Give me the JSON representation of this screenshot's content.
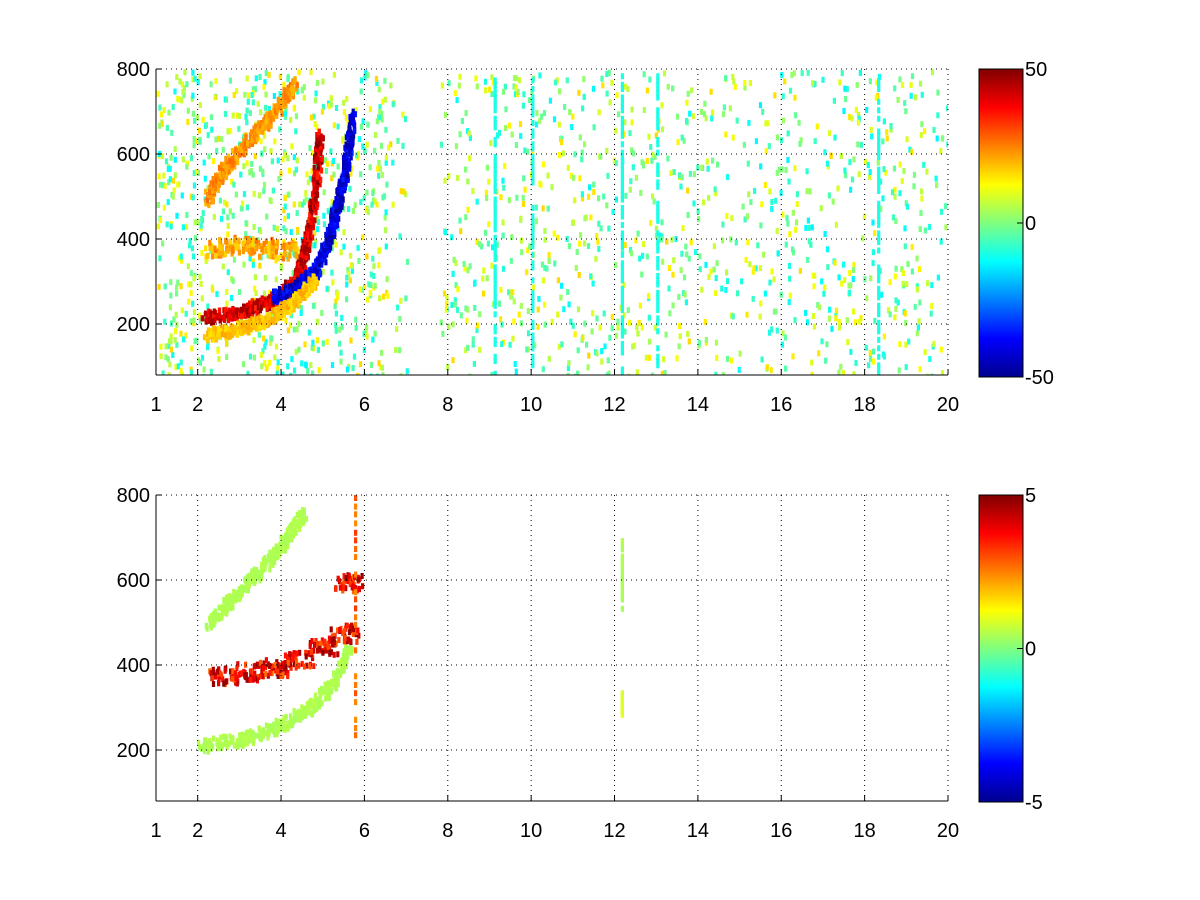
{
  "colormap": "jet",
  "colormap_stops": [
    "#00008f",
    "#0000ff",
    "#00ffff",
    "#ffff00",
    "#ff0000",
    "#800000"
  ],
  "chart_data": [
    {
      "type": "heatmap",
      "title": "",
      "xlabel": "",
      "ylabel": "",
      "xlim": [
        1,
        20
      ],
      "ylim": [
        80,
        800
      ],
      "xticks": [
        1,
        2,
        4,
        6,
        8,
        10,
        12,
        14,
        16,
        18,
        20
      ],
      "xtick_labels": [
        "1",
        "2",
        "4",
        "6",
        "8",
        "10",
        "12",
        "14",
        "16",
        "18",
        "20"
      ],
      "yticks": [
        200,
        400,
        600,
        800
      ],
      "ytick_labels": [
        "200",
        "400",
        "600",
        "800"
      ],
      "grid": true,
      "colorbar": {
        "min": -50,
        "max": 50,
        "ticks": [
          -50,
          0,
          50
        ],
        "tick_labels": [
          "-50",
          "0",
          "50"
        ]
      },
      "features": [
        {
          "kind": "arc",
          "desc": "positive ridge",
          "value": 45,
          "points": [
            [
              2.1,
              220
            ],
            [
              3.0,
              235
            ],
            [
              3.6,
              255
            ],
            [
              4.0,
              275
            ],
            [
              4.4,
              320
            ],
            [
              4.6,
              400
            ],
            [
              4.8,
              520
            ],
            [
              4.9,
              650
            ]
          ]
        },
        {
          "kind": "arc",
          "desc": "negative ridge",
          "value": -45,
          "points": [
            [
              3.8,
              270
            ],
            [
              4.3,
              285
            ],
            [
              4.8,
              330
            ],
            [
              5.1,
              400
            ],
            [
              5.3,
              480
            ],
            [
              5.5,
              560
            ],
            [
              5.7,
              700
            ]
          ]
        },
        {
          "kind": "arc",
          "desc": "outer positive band",
          "value": 20,
          "points": [
            [
              2.2,
              180
            ],
            [
              3.0,
              195
            ],
            [
              3.6,
              215
            ],
            [
              4.2,
              250
            ],
            [
              4.8,
              310
            ]
          ]
        },
        {
          "kind": "arc",
          "desc": "upper positive band",
          "value": 25,
          "points": [
            [
              2.2,
              500
            ],
            [
              2.6,
              570
            ],
            [
              3.2,
              640
            ],
            [
              3.8,
              700
            ],
            [
              4.3,
              770
            ]
          ]
        },
        {
          "kind": "cluster",
          "desc": "horizontal band",
          "value": 25,
          "points": [
            [
              2.5,
              385
            ],
            [
              3.0,
              390
            ],
            [
              3.5,
              385
            ],
            [
              4.0,
              380
            ]
          ]
        }
      ]
    },
    {
      "type": "heatmap",
      "title": "",
      "xlabel": "",
      "ylabel": "",
      "xlim": [
        1,
        20
      ],
      "ylim": [
        80,
        800
      ],
      "xticks": [
        1,
        2,
        4,
        6,
        8,
        10,
        12,
        14,
        16,
        18,
        20
      ],
      "xtick_labels": [
        "1",
        "2",
        "4",
        "6",
        "8",
        "10",
        "12",
        "14",
        "16",
        "18",
        "20"
      ],
      "yticks": [
        200,
        400,
        600,
        800
      ],
      "ytick_labels": [
        "200",
        "400",
        "600",
        "800"
      ],
      "grid": true,
      "colorbar": {
        "min": -5,
        "max": 5,
        "ticks": [
          -5,
          0,
          5
        ],
        "tick_labels": [
          "-5",
          "0",
          "5"
        ]
      },
      "features": [
        {
          "kind": "arc",
          "desc": "lower green band",
          "value": 0.5,
          "points": [
            [
              2.0,
              215
            ],
            [
              3.0,
              230
            ],
            [
              3.8,
              255
            ],
            [
              4.6,
              300
            ],
            [
              5.2,
              360
            ],
            [
              5.6,
              440
            ]
          ]
        },
        {
          "kind": "arc",
          "desc": "upper green band",
          "value": 0.5,
          "points": [
            [
              2.2,
              500
            ],
            [
              2.8,
              560
            ],
            [
              3.4,
              620
            ],
            [
              4.0,
              690
            ],
            [
              4.5,
              760
            ]
          ]
        },
        {
          "kind": "cluster",
          "desc": "red patch",
          "value": 4.5,
          "points": [
            [
              2.6,
              380
            ],
            [
              3.2,
              390
            ],
            [
              3.8,
              400
            ],
            [
              4.4,
              420
            ],
            [
              5.0,
              450
            ],
            [
              5.5,
              480
            ],
            [
              5.6,
              600
            ]
          ]
        },
        {
          "kind": "line",
          "desc": "vertical streak",
          "value": 3,
          "points": [
            [
              5.75,
              200
            ],
            [
              5.75,
              800
            ]
          ]
        },
        {
          "kind": "line",
          "desc": "streak near 12",
          "value": 0.5,
          "points": [
            [
              12.15,
              540
            ],
            [
              12.15,
              700
            ]
          ]
        },
        {
          "kind": "line",
          "desc": "streak near 12 low",
          "value": 1,
          "points": [
            [
              12.15,
              290
            ],
            [
              12.15,
              340
            ]
          ]
        }
      ]
    }
  ]
}
